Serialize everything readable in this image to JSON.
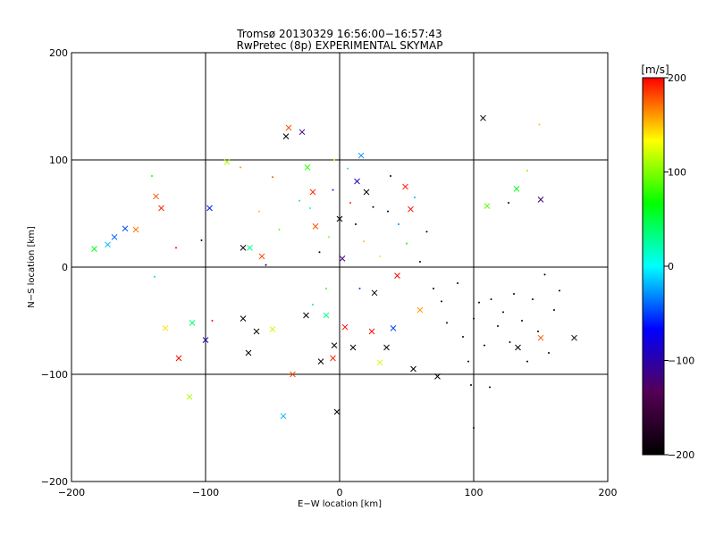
{
  "chart_data": {
    "type": "scatter",
    "title": "Tromsø 20130329 16:56:00−16:57:43",
    "subtitle": "RwPretec (8p) EXPERIMENTAL SKYMAP",
    "xlabel": "E−W location [km]",
    "ylabel": "N−S location [km]",
    "xlim": [
      -200,
      200
    ],
    "ylim": [
      -200,
      200
    ],
    "x_ticks": [
      -200,
      -100,
      0,
      100,
      200
    ],
    "y_ticks": [
      -200,
      -100,
      0,
      100,
      200
    ],
    "grid": true,
    "colorbar": {
      "label": "[m/s]",
      "range": [
        -200,
        200
      ],
      "ticks": [
        200,
        100,
        0,
        -100,
        -200
      ],
      "colors": [
        "#ff0000",
        "#ffff00",
        "#00ff00",
        "#00ffff",
        "#0000ff",
        "#550055",
        "#000000"
      ]
    },
    "series": [
      {
        "marker": "x",
        "points": [
          [
            -183,
            17,
            60
          ],
          [
            -173,
            21,
            -20
          ],
          [
            -168,
            28,
            -40
          ],
          [
            -160,
            36,
            -50
          ],
          [
            -152,
            35,
            170
          ],
          [
            -137,
            66,
            180
          ],
          [
            -133,
            55,
            190
          ],
          [
            -130,
            -57,
            140
          ],
          [
            -120,
            -85,
            200
          ],
          [
            -112,
            -121,
            110
          ],
          [
            -110,
            -52,
            40
          ],
          [
            -100,
            -68,
            -100
          ],
          [
            -97,
            55,
            -60
          ],
          [
            -84,
            98,
            110
          ],
          [
            -72,
            18,
            -190
          ],
          [
            -67,
            18,
            30
          ],
          [
            -72,
            -48,
            -190
          ],
          [
            -68,
            -80,
            -200
          ],
          [
            -62,
            -60,
            -200
          ],
          [
            -58,
            10,
            180
          ],
          [
            -50,
            -58,
            120
          ],
          [
            -40,
            122,
            -200
          ],
          [
            -38,
            130,
            180
          ],
          [
            -42,
            -139,
            -20
          ],
          [
            -28,
            126,
            -110
          ],
          [
            -24,
            93,
            80
          ],
          [
            -20,
            70,
            190
          ],
          [
            -18,
            38,
            180
          ],
          [
            -14,
            -88,
            -200
          ],
          [
            -10,
            -45,
            30
          ],
          [
            -4,
            -73,
            -190
          ],
          [
            0,
            45,
            -200
          ],
          [
            2,
            8,
            -120
          ],
          [
            4,
            -56,
            200
          ],
          [
            -2,
            -135,
            -200
          ],
          [
            13,
            80,
            -100
          ],
          [
            16,
            104,
            -30
          ],
          [
            20,
            70,
            -200
          ],
          [
            24,
            -60,
            200
          ],
          [
            26,
            -24,
            -200
          ],
          [
            30,
            -89,
            120
          ],
          [
            35,
            -75,
            -190
          ],
          [
            40,
            -57,
            -50
          ],
          [
            43,
            -8,
            200
          ],
          [
            49,
            75,
            190
          ],
          [
            53,
            54,
            200
          ],
          [
            55,
            -95,
            -200
          ],
          [
            60,
            -40,
            160
          ],
          [
            73,
            -102,
            -200
          ],
          [
            107,
            139,
            -200
          ],
          [
            110,
            57,
            90
          ],
          [
            132,
            73,
            60
          ],
          [
            150,
            63,
            -120
          ],
          [
            150,
            -66,
            180
          ],
          [
            175,
            -66,
            -200
          ],
          [
            133,
            -75,
            -200
          ],
          [
            -35,
            -100,
            180
          ],
          [
            -25,
            -45,
            -200
          ],
          [
            10,
            -75,
            -200
          ],
          [
            -5,
            -85,
            190
          ]
        ]
      },
      {
        "marker": "dot",
        "points": [
          [
            -140,
            85,
            70
          ],
          [
            -138,
            -9,
            -10
          ],
          [
            -122,
            18,
            200
          ],
          [
            -103,
            25,
            -200
          ],
          [
            -95,
            -50,
            200
          ],
          [
            -74,
            93,
            160
          ],
          [
            -60,
            52,
            150
          ],
          [
            -55,
            2,
            -190
          ],
          [
            -50,
            84,
            180
          ],
          [
            -45,
            35,
            90
          ],
          [
            -30,
            62,
            40
          ],
          [
            -22,
            55,
            10
          ],
          [
            -15,
            14,
            -200
          ],
          [
            -8,
            28,
            100
          ],
          [
            -5,
            72,
            -60
          ],
          [
            6,
            92,
            30
          ],
          [
            8,
            60,
            190
          ],
          [
            12,
            40,
            -200
          ],
          [
            18,
            24,
            150
          ],
          [
            25,
            56,
            -200
          ],
          [
            30,
            10,
            120
          ],
          [
            36,
            52,
            -200
          ],
          [
            38,
            85,
            -200
          ],
          [
            44,
            40,
            -30
          ],
          [
            50,
            22,
            60
          ],
          [
            56,
            65,
            -20
          ],
          [
            60,
            5,
            -200
          ],
          [
            65,
            33,
            -200
          ],
          [
            70,
            -20,
            -200
          ],
          [
            76,
            -32,
            -200
          ],
          [
            80,
            -52,
            -200
          ],
          [
            88,
            -15,
            -200
          ],
          [
            92,
            -65,
            -200
          ],
          [
            96,
            -88,
            -200
          ],
          [
            100,
            -48,
            -200
          ],
          [
            104,
            -33,
            -200
          ],
          [
            108,
            -73,
            -200
          ],
          [
            113,
            -30,
            -200
          ],
          [
            118,
            -55,
            -200
          ],
          [
            122,
            -42,
            -200
          ],
          [
            127,
            -70,
            -200
          ],
          [
            130,
            -25,
            -200
          ],
          [
            136,
            -50,
            -200
          ],
          [
            140,
            -88,
            -200
          ],
          [
            144,
            -30,
            -200
          ],
          [
            148,
            -60,
            -200
          ],
          [
            153,
            -7,
            -200
          ],
          [
            156,
            -80,
            -200
          ],
          [
            160,
            -40,
            -200
          ],
          [
            164,
            -22,
            -200
          ],
          [
            100,
            -150,
            -200
          ],
          [
            112,
            -112,
            -200
          ],
          [
            98,
            -110,
            -200
          ],
          [
            126,
            60,
            -200
          ],
          [
            140,
            90,
            100
          ],
          [
            149,
            133,
            150
          ],
          [
            -4,
            100,
            110
          ],
          [
            -10,
            -20,
            80
          ],
          [
            15,
            -20,
            -50
          ],
          [
            -20,
            -35,
            40
          ]
        ]
      }
    ]
  }
}
